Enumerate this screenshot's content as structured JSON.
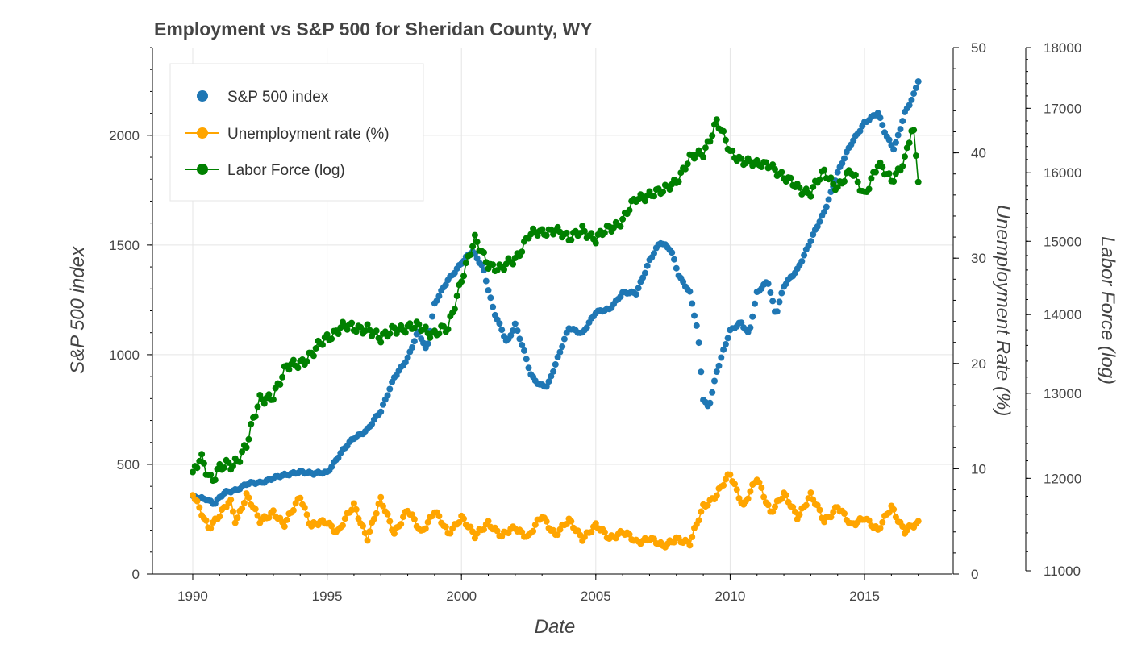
{
  "chart_data": {
    "type": "line",
    "title": "Employment vs S&P 500 for Sheridan County, WY",
    "xlabel": "Date",
    "xlim": [
      1988.5,
      2018.3
    ],
    "x_ticks": [
      1990,
      1995,
      2000,
      2005,
      2010,
      2015
    ],
    "y_axes": {
      "left": {
        "label": "S&P 500 index",
        "range": [
          0,
          2400
        ],
        "ticks": [
          0,
          500,
          1000,
          1500,
          2000
        ]
      },
      "right1": {
        "label": "Unemployment Rate (%)",
        "range": [
          0,
          50
        ],
        "ticks": [
          0,
          10,
          20,
          30,
          40,
          50
        ]
      },
      "right2": {
        "label": "Labor Force (log)",
        "range": [
          11000,
          18000
        ],
        "ticks": [
          11000,
          12000,
          13000,
          14000,
          15000,
          16000,
          17000,
          18000
        ],
        "scale": "log"
      }
    },
    "grid": true,
    "legend_position": "top-left",
    "series": [
      {
        "name": "S&P 500 index",
        "axis": "left",
        "color": "#1f77b4",
        "style": "markers",
        "anchors": [
          [
            1990.0,
            350
          ],
          [
            1990.5,
            345
          ],
          [
            1990.8,
            320
          ],
          [
            1991.2,
            370
          ],
          [
            1991.6,
            385
          ],
          [
            1992.0,
            410
          ],
          [
            1992.5,
            415
          ],
          [
            1993.0,
            440
          ],
          [
            1993.5,
            450
          ],
          [
            1994.0,
            470
          ],
          [
            1994.5,
            455
          ],
          [
            1995.0,
            465
          ],
          [
            1995.5,
            550
          ],
          [
            1996.0,
            620
          ],
          [
            1996.5,
            660
          ],
          [
            1997.0,
            740
          ],
          [
            1997.5,
            900
          ],
          [
            1998.0,
            980
          ],
          [
            1998.4,
            1110
          ],
          [
            1998.7,
            1020
          ],
          [
            1999.0,
            1230
          ],
          [
            1999.5,
            1340
          ],
          [
            2000.0,
            1420
          ],
          [
            2000.4,
            1470
          ],
          [
            2000.8,
            1400
          ],
          [
            2001.2,
            1200
          ],
          [
            2001.7,
            1050
          ],
          [
            2002.0,
            1140
          ],
          [
            2002.3,
            1030
          ],
          [
            2002.6,
            900
          ],
          [
            2002.9,
            860
          ],
          [
            2003.2,
            860
          ],
          [
            2003.6,
            990
          ],
          [
            2004.0,
            1120
          ],
          [
            2004.5,
            1100
          ],
          [
            2005.0,
            1190
          ],
          [
            2005.5,
            1210
          ],
          [
            2006.0,
            1280
          ],
          [
            2006.5,
            1280
          ],
          [
            2007.0,
            1430
          ],
          [
            2007.4,
            1510
          ],
          [
            2007.8,
            1480
          ],
          [
            2008.1,
            1360
          ],
          [
            2008.5,
            1280
          ],
          [
            2008.8,
            1100
          ],
          [
            2009.0,
            800
          ],
          [
            2009.2,
            760
          ],
          [
            2009.5,
            920
          ],
          [
            2010.0,
            1110
          ],
          [
            2010.4,
            1150
          ],
          [
            2010.7,
            1090
          ],
          [
            2011.0,
            1280
          ],
          [
            2011.4,
            1340
          ],
          [
            2011.7,
            1180
          ],
          [
            2012.0,
            1310
          ],
          [
            2012.5,
            1390
          ],
          [
            2013.0,
            1520
          ],
          [
            2013.5,
            1650
          ],
          [
            2014.0,
            1830
          ],
          [
            2014.5,
            1960
          ],
          [
            2015.0,
            2060
          ],
          [
            2015.5,
            2100
          ],
          [
            2015.8,
            2000
          ],
          [
            2016.1,
            1940
          ],
          [
            2016.5,
            2100
          ],
          [
            2016.8,
            2170
          ],
          [
            2017.0,
            2250
          ]
        ]
      },
      {
        "name": "Unemployment rate (%)",
        "axis": "right1",
        "color": "#ffa500",
        "style": "line+markers",
        "anchors": [
          [
            1990.0,
            7.5
          ],
          [
            1990.3,
            6.0
          ],
          [
            1990.6,
            4.5
          ],
          [
            1991.0,
            5.5
          ],
          [
            1991.4,
            7.0
          ],
          [
            1991.6,
            5.0
          ],
          [
            1992.0,
            7.5
          ],
          [
            1992.5,
            5.0
          ],
          [
            1993.0,
            6.0
          ],
          [
            1993.4,
            4.5
          ],
          [
            1994.0,
            7.5
          ],
          [
            1994.4,
            4.5
          ],
          [
            1995.0,
            5.0
          ],
          [
            1995.4,
            4.0
          ],
          [
            1996.0,
            6.5
          ],
          [
            1996.5,
            3.5
          ],
          [
            1997.0,
            7.0
          ],
          [
            1997.5,
            4.0
          ],
          [
            1998.0,
            6.0
          ],
          [
            1998.5,
            4.0
          ],
          [
            1999.0,
            6.0
          ],
          [
            1999.5,
            3.8
          ],
          [
            2000.0,
            5.5
          ],
          [
            2000.5,
            3.5
          ],
          [
            2001.0,
            5.0
          ],
          [
            2001.5,
            3.5
          ],
          [
            2002.0,
            4.5
          ],
          [
            2002.5,
            3.5
          ],
          [
            2003.0,
            5.5
          ],
          [
            2003.5,
            3.8
          ],
          [
            2004.0,
            5.0
          ],
          [
            2004.5,
            3.5
          ],
          [
            2005.0,
            4.5
          ],
          [
            2005.5,
            3.5
          ],
          [
            2006.0,
            4.0
          ],
          [
            2006.5,
            3.0
          ],
          [
            2007.0,
            3.5
          ],
          [
            2007.5,
            2.5
          ],
          [
            2008.0,
            3.5
          ],
          [
            2008.5,
            2.8
          ],
          [
            2009.0,
            6.5
          ],
          [
            2009.5,
            7.5
          ],
          [
            2010.0,
            9.5
          ],
          [
            2010.5,
            6.5
          ],
          [
            2011.0,
            9.0
          ],
          [
            2011.5,
            6.0
          ],
          [
            2012.0,
            7.5
          ],
          [
            2012.5,
            5.5
          ],
          [
            2013.0,
            7.5
          ],
          [
            2013.5,
            5.0
          ],
          [
            2014.0,
            6.5
          ],
          [
            2014.5,
            4.5
          ],
          [
            2015.0,
            5.5
          ],
          [
            2015.5,
            4.0
          ],
          [
            2016.0,
            6.5
          ],
          [
            2016.5,
            4.0
          ],
          [
            2017.0,
            4.8
          ]
        ]
      },
      {
        "name": "Labor Force (log)",
        "axis": "right2",
        "color": "#008000",
        "style": "line+markers",
        "anchors": [
          [
            1990.0,
            12000
          ],
          [
            1990.3,
            12250
          ],
          [
            1990.7,
            12000
          ],
          [
            1991.0,
            12100
          ],
          [
            1991.5,
            12150
          ],
          [
            1992.0,
            12400
          ],
          [
            1992.5,
            12900
          ],
          [
            1993.0,
            13000
          ],
          [
            1993.5,
            13300
          ],
          [
            1994.0,
            13400
          ],
          [
            1994.5,
            13500
          ],
          [
            1995.0,
            13700
          ],
          [
            1995.5,
            13850
          ],
          [
            1996.0,
            13800
          ],
          [
            1996.5,
            13850
          ],
          [
            1997.0,
            13650
          ],
          [
            1997.5,
            13850
          ],
          [
            1998.0,
            13800
          ],
          [
            1998.5,
            13850
          ],
          [
            1999.0,
            13750
          ],
          [
            1999.5,
            13800
          ],
          [
            2000.0,
            14500
          ],
          [
            2000.5,
            15000
          ],
          [
            2001.0,
            14700
          ],
          [
            2001.5,
            14600
          ],
          [
            2002.0,
            14750
          ],
          [
            2002.5,
            15100
          ],
          [
            2003.0,
            15100
          ],
          [
            2003.5,
            15200
          ],
          [
            2004.0,
            15000
          ],
          [
            2004.5,
            15200
          ],
          [
            2005.0,
            15000
          ],
          [
            2005.5,
            15200
          ],
          [
            2006.0,
            15300
          ],
          [
            2006.5,
            15600
          ],
          [
            2007.0,
            15700
          ],
          [
            2007.5,
            15700
          ],
          [
            2008.0,
            15900
          ],
          [
            2008.5,
            16200
          ],
          [
            2009.0,
            16300
          ],
          [
            2009.5,
            16800
          ],
          [
            2010.0,
            16300
          ],
          [
            2010.5,
            16200
          ],
          [
            2011.0,
            16100
          ],
          [
            2011.5,
            16150
          ],
          [
            2012.0,
            15900
          ],
          [
            2012.5,
            15800
          ],
          [
            2013.0,
            15700
          ],
          [
            2013.5,
            16000
          ],
          [
            2014.0,
            15800
          ],
          [
            2014.5,
            16000
          ],
          [
            2015.0,
            15700
          ],
          [
            2015.5,
            16100
          ],
          [
            2016.0,
            15900
          ],
          [
            2016.5,
            16200
          ],
          [
            2016.8,
            16700
          ],
          [
            2017.0,
            15900
          ]
        ]
      }
    ]
  }
}
